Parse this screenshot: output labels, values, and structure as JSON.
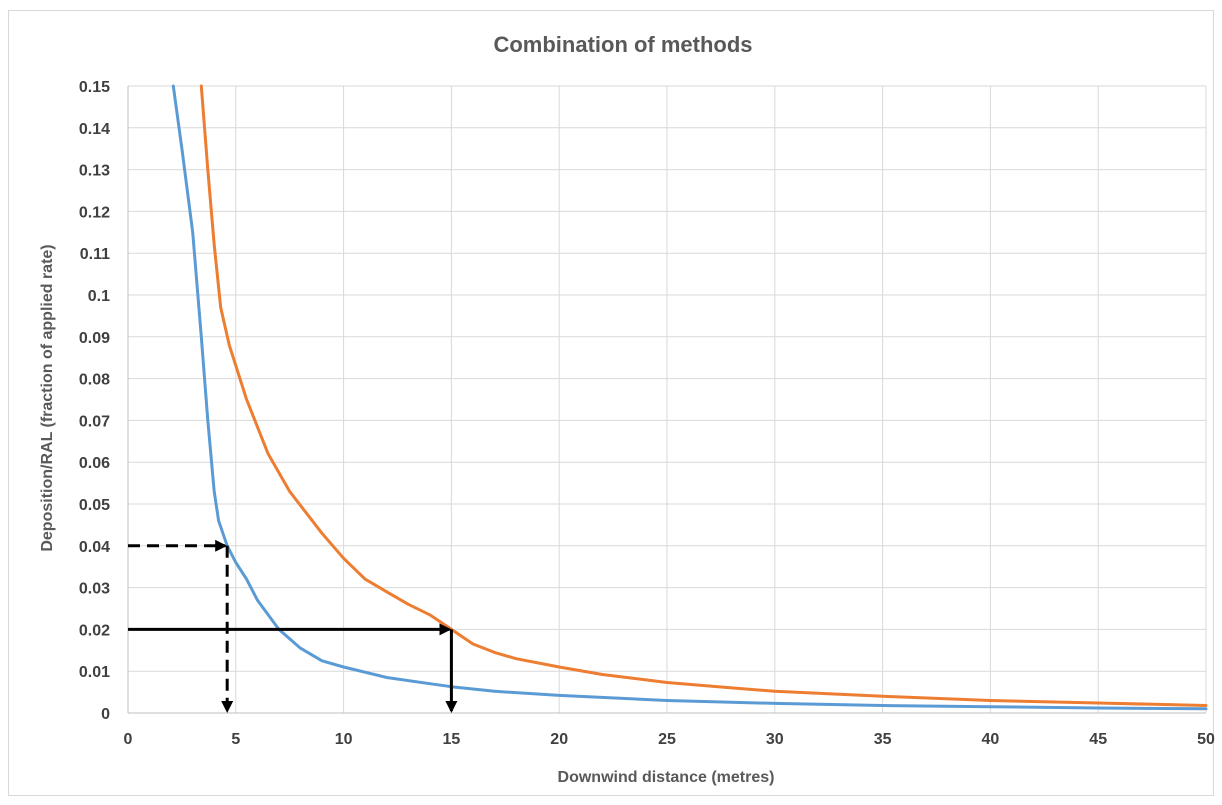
{
  "chart_data": {
    "type": "line",
    "title": "Combination of methods",
    "xlabel": "Downwind distance (metres)",
    "ylabel": "Deposition/RAL (fraction of applied rate)",
    "xlim": [
      0,
      50
    ],
    "ylim": [
      0,
      0.15
    ],
    "x_ticks": [
      0,
      5,
      10,
      15,
      20,
      25,
      30,
      35,
      40,
      45,
      50
    ],
    "y_ticks": [
      0,
      0.01,
      0.02,
      0.03,
      0.04,
      0.05,
      0.06,
      0.07,
      0.08,
      0.09,
      0.1,
      0.11,
      0.12,
      0.13,
      0.14,
      0.15
    ],
    "x_tick_labels": [
      "0",
      "5",
      "10",
      "15",
      "20",
      "25",
      "30",
      "35",
      "40",
      "45",
      "50"
    ],
    "y_tick_labels": [
      "0",
      "0.01",
      "0.02",
      "0.03",
      "0.04",
      "0.05",
      "0.06",
      "0.07",
      "0.08",
      "0.09",
      "0.1",
      "0.11",
      "0.12",
      "0.13",
      "0.14",
      "0.15"
    ],
    "grid": true,
    "legend": false,
    "series": [
      {
        "color": "#5b9bd5",
        "points": [
          [
            2.1,
            0.15
          ],
          [
            2.5,
            0.135
          ],
          [
            3.0,
            0.115
          ],
          [
            3.4,
            0.09
          ],
          [
            3.7,
            0.07
          ],
          [
            4.0,
            0.053
          ],
          [
            4.2,
            0.046
          ],
          [
            4.6,
            0.04
          ],
          [
            5.0,
            0.036
          ],
          [
            5.5,
            0.032
          ],
          [
            6.0,
            0.027
          ],
          [
            7.0,
            0.02
          ],
          [
            8.0,
            0.0155
          ],
          [
            9.0,
            0.0125
          ],
          [
            10,
            0.011
          ],
          [
            12,
            0.0085
          ],
          [
            14,
            0.007
          ],
          [
            15,
            0.0063
          ],
          [
            17,
            0.0052
          ],
          [
            20,
            0.0042
          ],
          [
            25,
            0.003
          ],
          [
            30,
            0.0023
          ],
          [
            35,
            0.0018
          ],
          [
            40,
            0.0015
          ],
          [
            45,
            0.0012
          ],
          [
            50,
            0.001
          ]
        ]
      },
      {
        "color": "#ed7d31",
        "points": [
          [
            3.4,
            0.15
          ],
          [
            3.7,
            0.13
          ],
          [
            4.0,
            0.112
          ],
          [
            4.3,
            0.097
          ],
          [
            4.7,
            0.088
          ],
          [
            5.5,
            0.075
          ],
          [
            6.5,
            0.062
          ],
          [
            7.5,
            0.053
          ],
          [
            9.0,
            0.043
          ],
          [
            10,
            0.037
          ],
          [
            11,
            0.032
          ],
          [
            12,
            0.029
          ],
          [
            13,
            0.026
          ],
          [
            14,
            0.0235
          ],
          [
            15,
            0.02
          ],
          [
            16,
            0.0165
          ],
          [
            17,
            0.0145
          ],
          [
            18,
            0.013
          ],
          [
            20,
            0.011
          ],
          [
            22,
            0.0092
          ],
          [
            25,
            0.0073
          ],
          [
            28,
            0.006
          ],
          [
            30,
            0.0052
          ],
          [
            35,
            0.004
          ],
          [
            40,
            0.003
          ],
          [
            45,
            0.0024
          ],
          [
            50,
            0.0018
          ]
        ]
      }
    ],
    "annotations": [
      {
        "style": "dashed",
        "y": 0.04,
        "x": 4.6
      },
      {
        "style": "solid",
        "y": 0.02,
        "x": 15
      }
    ]
  }
}
